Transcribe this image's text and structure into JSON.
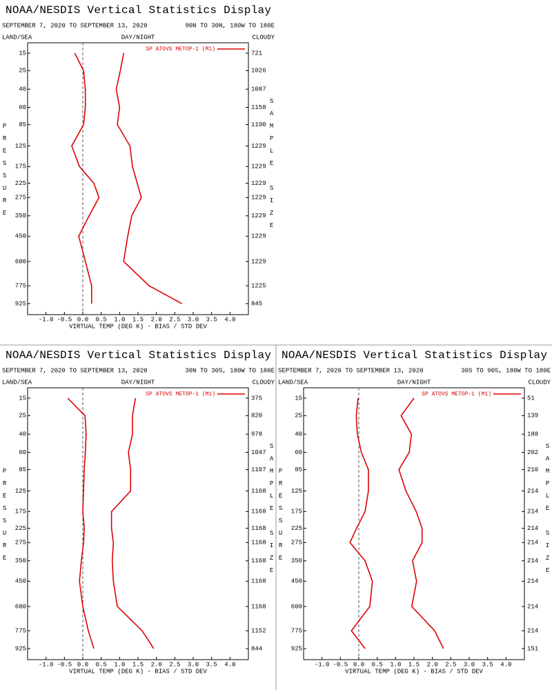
{
  "chart_data": [
    {
      "type": "line",
      "title": "NOAA/NESDIS Vertical Statistics Display",
      "date_range": "SEPTEMBER 7, 2020 TO SEPTEMBER 13, 2020",
      "region": "90N TO 30N, 180W TO 180E",
      "land_sea_label": "LAND/SEA",
      "day_night_label": "DAY/NIGHT",
      "cloudy_label": "CLOUDY",
      "x_label": "VIRTUAL TEMP (DEG K) - BIAS / STD DEV",
      "y_label": "PRESSURE",
      "y2_label": "SAMPLE SIZE",
      "xlim": [
        -1.5,
        4.5
      ],
      "xticks": [
        {
          "value": -1,
          "label": "-1.0"
        },
        -0.5,
        {
          "value": 0,
          "label": "0.0"
        },
        0.5,
        {
          "value": 1,
          "label": "1.0"
        },
        1.5,
        {
          "value": 2,
          "label": "2.0"
        },
        2.5,
        {
          "value": 3,
          "label": "3.0"
        },
        3.5,
        {
          "value": 4,
          "label": "4.0"
        }
      ],
      "levels": [
        15,
        25,
        40,
        60,
        85,
        125,
        175,
        225,
        275,
        350,
        450,
        600,
        775,
        925
      ],
      "legend": "upper right",
      "series": [
        {
          "name": "SP ATOVS METOP-1 (M1)",
          "color": "#dd0000",
          "bias": [
            -0.22,
            0.02,
            0.07,
            0.07,
            0.02,
            -0.3,
            -0.09,
            0.3,
            0.44,
            0.17,
            -0.11,
            0.07,
            0.24,
            0.24
          ],
          "std_dev": [
            1.11,
            1.02,
            0.91,
            1.0,
            0.94,
            1.28,
            1.35,
            1.48,
            1.59,
            1.33,
            1.22,
            1.11,
            1.8,
            2.69
          ]
        }
      ],
      "sample_size": [
        721,
        1026,
        1087,
        1158,
        1190,
        1229,
        1229,
        1229,
        1229,
        1229,
        1229,
        1229,
        1225,
        845
      ]
    },
    {
      "type": "line",
      "title": "NOAA/NESDIS Vertical Statistics Display",
      "date_range": "SEPTEMBER 7, 2020 TO SEPTEMBER 13, 2020",
      "region": "30N TO 30S, 180W TO 180E",
      "land_sea_label": "LAND/SEA",
      "day_night_label": "DAY/NIGHT",
      "cloudy_label": "CLOUDY",
      "x_label": "VIRTUAL TEMP (DEG K) - BIAS / STD DEV",
      "y_label": "PRESSURE",
      "y2_label": "SAMPLE SIZE",
      "xlim": [
        -1.5,
        4.5
      ],
      "xticks": [
        {
          "value": -1,
          "label": "-1.0"
        },
        -0.5,
        {
          "value": 0,
          "label": "0.0"
        },
        0.5,
        {
          "value": 1,
          "label": "1.0"
        },
        1.5,
        {
          "value": 2,
          "label": "2.0"
        },
        2.5,
        {
          "value": 3,
          "label": "3.0"
        },
        3.5,
        {
          "value": 4,
          "label": "4.0"
        }
      ],
      "levels": [
        15,
        25,
        40,
        60,
        85,
        125,
        175,
        225,
        275,
        350,
        450,
        600,
        775,
        925
      ],
      "legend": "upper right",
      "series": [
        {
          "name": "SP ATOVS METOP-1 (M1)",
          "color": "#dd0000",
          "bias": [
            -0.41,
            0.06,
            0.09,
            0.07,
            0.04,
            0.02,
            0.0,
            0.04,
            0.02,
            -0.04,
            -0.09,
            0.0,
            0.15,
            0.3
          ],
          "std_dev": [
            1.43,
            1.35,
            1.35,
            1.24,
            1.3,
            1.3,
            0.78,
            0.78,
            0.83,
            0.8,
            0.83,
            0.94,
            1.61,
            1.93
          ]
        }
      ],
      "sample_size": [
        375,
        820,
        978,
        1047,
        1107,
        1168,
        1168,
        1168,
        1168,
        1168,
        1168,
        1168,
        1152,
        844
      ]
    },
    {
      "type": "line",
      "title": "NOAA/NESDIS Vertical Statistics Display",
      "date_range": "SEPTEMBER 7, 2020 TO SEPTEMBER 13, 2020",
      "region": "30S TO 90S, 180W TO 180E",
      "land_sea_label": "LAND/SEA",
      "day_night_label": "DAY/NIGHT",
      "cloudy_label": "CLOUDY",
      "x_label": "VIRTUAL TEMP (DEG K) - BIAS / STD DEV",
      "y_label": "PRESSURE",
      "y2_label": "SAMPLE SIZE",
      "xlim": [
        -1.5,
        4.5
      ],
      "xticks": [
        {
          "value": -1,
          "label": "-1.0"
        },
        -0.5,
        {
          "value": 0,
          "label": "0.0"
        },
        0.5,
        {
          "value": 1,
          "label": "1.0"
        },
        1.5,
        {
          "value": 2,
          "label": "2.0"
        },
        2.5,
        {
          "value": 3,
          "label": "3.0"
        },
        3.5,
        {
          "value": 4,
          "label": "4.0"
        }
      ],
      "levels": [
        15,
        25,
        40,
        60,
        85,
        125,
        175,
        225,
        275,
        350,
        450,
        600,
        775,
        925
      ],
      "legend": "upper right",
      "series": [
        {
          "name": "SP ATOVS METOP-1 (M1)",
          "color": "#dd0000",
          "bias": [
            -0.02,
            -0.07,
            -0.04,
            0.07,
            0.26,
            0.26,
            0.17,
            -0.06,
            -0.24,
            0.17,
            0.37,
            0.3,
            -0.2,
            0.17
          ],
          "std_dev": [
            1.5,
            1.15,
            1.43,
            1.37,
            1.09,
            1.28,
            1.56,
            1.72,
            1.72,
            1.46,
            1.57,
            1.44,
            2.06,
            2.3
          ]
        }
      ],
      "sample_size": [
        51,
        139,
        188,
        202,
        210,
        214,
        214,
        214,
        214,
        214,
        214,
        214,
        214,
        151
      ]
    }
  ]
}
